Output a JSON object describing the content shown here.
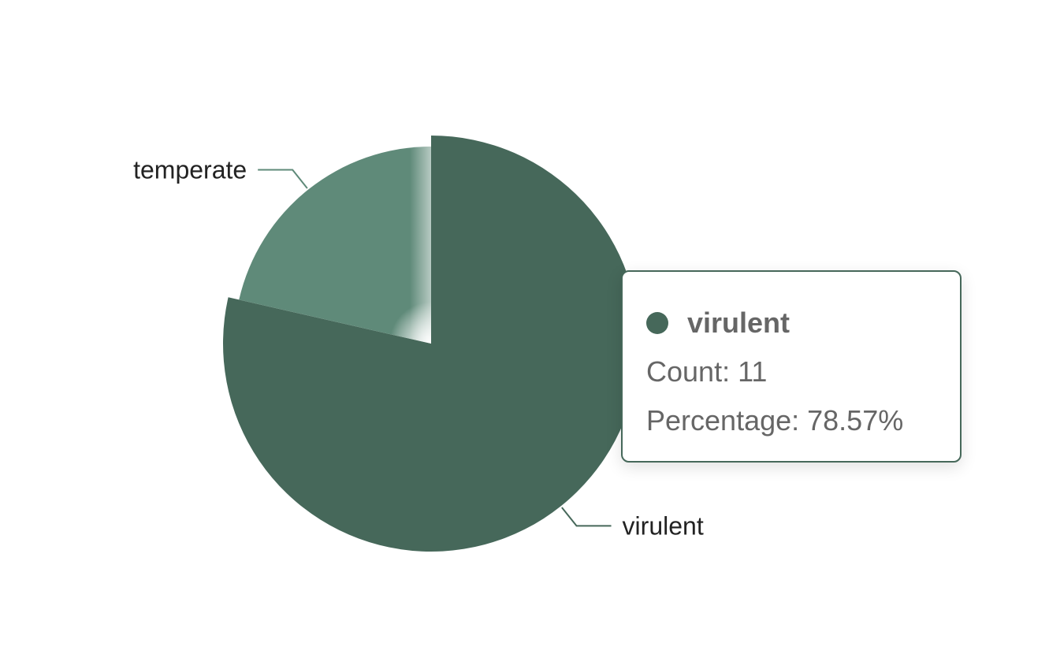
{
  "chart_data": {
    "type": "pie",
    "slices": [
      {
        "label": "virulent",
        "value": 11,
        "percentage": 78.57,
        "color": "#46685a"
      },
      {
        "label": "temperate",
        "value": 3,
        "percentage": 21.43,
        "color": "#5f8a79"
      }
    ],
    "start_angle_deg": 0,
    "direction": "clockwise",
    "highlighted": "virulent"
  },
  "tooltip": {
    "name": "virulent",
    "count_text": "Count: 11",
    "percentage_text": "Percentage: 78.57%",
    "dot_color": "#46685a"
  }
}
